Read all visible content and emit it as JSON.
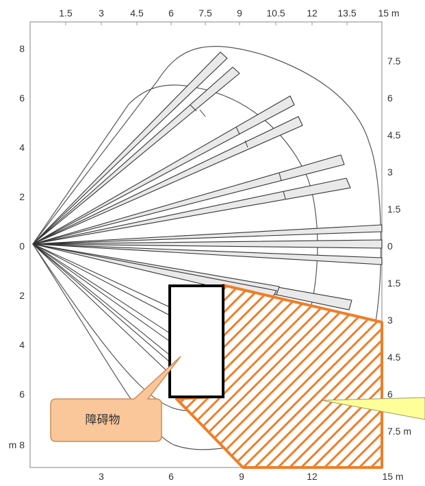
{
  "diagram": {
    "top_axis": {
      "ticks": [
        "1.5",
        "3",
        "4.5",
        "6",
        "7.5",
        "9",
        "10.5",
        "12",
        "13.5",
        "15 m"
      ]
    },
    "left_axis": {
      "ticks": [
        "8",
        "6",
        "4",
        "2",
        "0",
        "2",
        "4",
        "6",
        "m 8"
      ]
    },
    "right_axis": {
      "ticks": [
        "7.5",
        "6",
        "4.5",
        "3",
        "1.5",
        "0",
        "1.5",
        "3",
        "4.5",
        "6",
        "7.5 m"
      ]
    },
    "bottom_axis": {
      "ticks": [
        "3",
        "6",
        "9",
        "12",
        "15 m"
      ]
    },
    "obstacle_label": "障碍物",
    "colors": {
      "hatch": "#f07d28",
      "callout_fill": "#f9c79a",
      "callout_stroke": "#cf8a55",
      "right_callout": "#ffff99",
      "frame": "#999999",
      "beam_fill": "#e9e9e9"
    }
  }
}
